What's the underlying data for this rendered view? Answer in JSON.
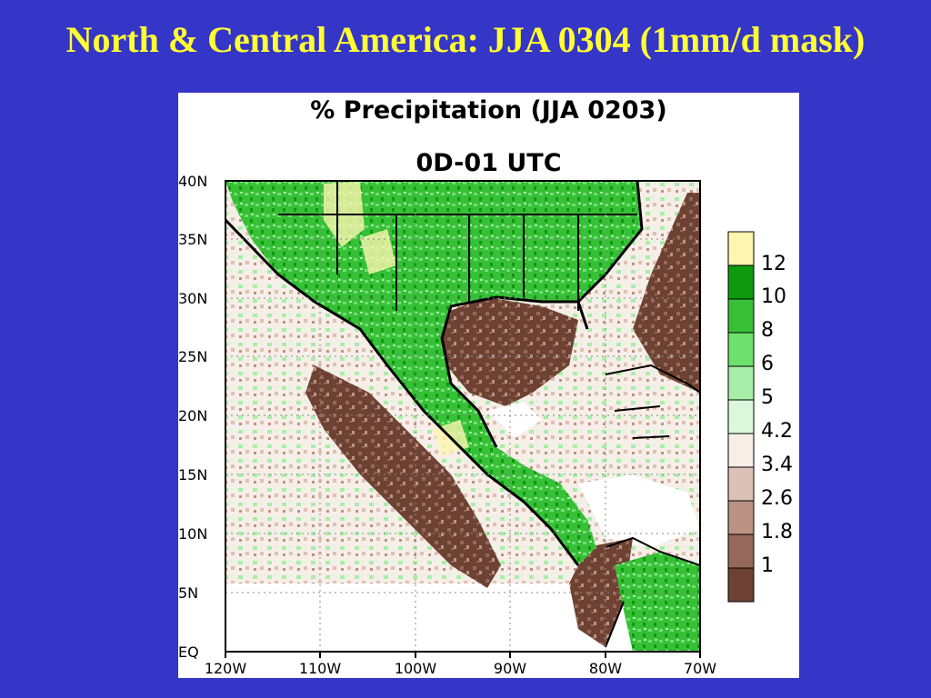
{
  "slide": {
    "title": "North & Central America: JJA 0304 (1mm/d mask)"
  },
  "map": {
    "title": "% Precipitation (JJA 0203)",
    "subtitle": "0D-01 UTC",
    "lat_labels": [
      "40N",
      "35N",
      "30N",
      "25N",
      "20N",
      "15N",
      "10N",
      "5N",
      "EQ"
    ],
    "lon_labels": [
      "120W",
      "110W",
      "100W",
      "90W",
      "80W",
      "70W"
    ],
    "colorbar": {
      "labels": [
        "12",
        "10",
        "8",
        "6",
        "5",
        "4.2",
        "3.4",
        "2.6",
        "1.8",
        "1"
      ],
      "colors": [
        "#fdf5b0",
        "#0d9a0d",
        "#37c037",
        "#6ee06e",
        "#a8eea8",
        "#dcf8dc",
        "#f7eee8",
        "#dcc1b6",
        "#ba9384",
        "#96685a",
        "#6e4232"
      ]
    }
  }
}
